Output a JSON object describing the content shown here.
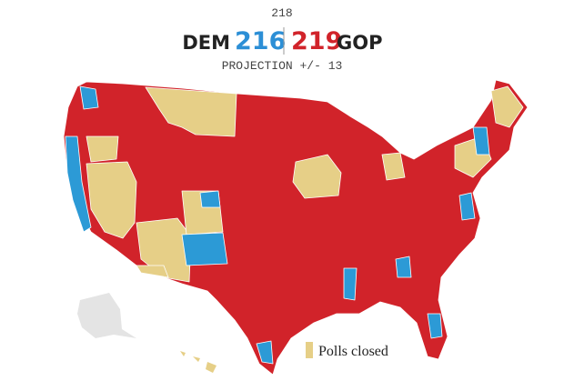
{
  "header": {
    "majority": "218",
    "dem_label": "DEM",
    "dem_seats": "216",
    "gop_seats": "219",
    "gop_label": "GOP",
    "projection": "PROJECTION +/- 13"
  },
  "legend": {
    "label": "Polls closed"
  }
}
